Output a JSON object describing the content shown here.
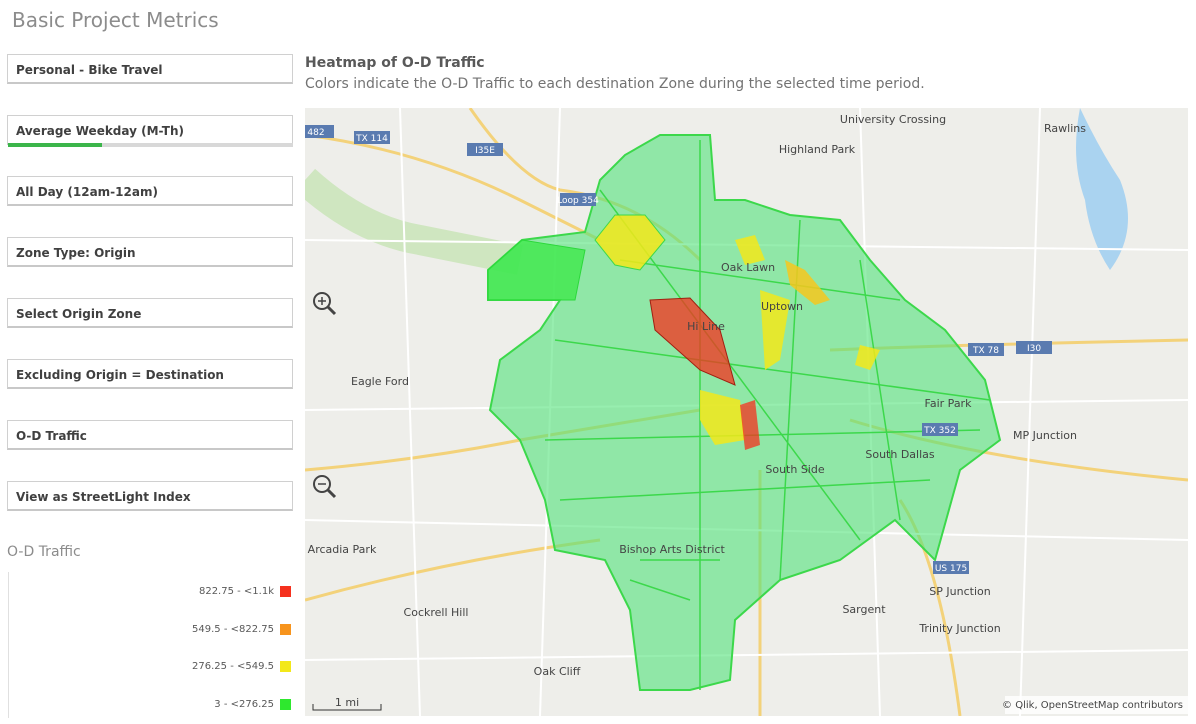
{
  "header": {
    "title": "Basic Project Metrics"
  },
  "filters": [
    "Personal - Bike Travel",
    "Average Weekday (M-Th)",
    "All Day (12am-12am)",
    "Zone Type: Origin",
    "Select Origin Zone",
    "Excluding Origin = Destination",
    "O-D Traffic",
    "View as StreetLight Index"
  ],
  "legend": {
    "title": "O-D Traffic",
    "items": [
      {
        "label": "822.75 - <1.1k",
        "color": "#f5311e"
      },
      {
        "label": "549.5 - <822.75",
        "color": "#f7941d"
      },
      {
        "label": "276.25 - <549.5",
        "color": "#f3e81a"
      },
      {
        "label": "3 - <276.25",
        "color": "#2ee82e"
      }
    ]
  },
  "map": {
    "title": "Heatmap of O-D Traffic",
    "subtitle": "Colors indicate the O-D Traffic to each destination Zone during the selected time period.",
    "labels": [
      "482",
      "TX 114",
      "I35E",
      "Loop 354",
      "University Crossing",
      "Rawlins",
      "Highland Park",
      "Oak Lawn",
      "Uptown",
      "Hi Line",
      "TX 78",
      "I30",
      "Eagle Ford",
      "Fair Park",
      "TX 352",
      "MP Junction",
      "South Dallas",
      "South Side",
      "Arcadia Park",
      "Bishop Arts District",
      "US 175",
      "Cockrell Hill",
      "Sargent",
      "SP Junction",
      "Trinity Junction",
      "Oak Cliff",
      "1 mi"
    ],
    "attribution": "© Qlik, OpenStreetMap contributors"
  }
}
